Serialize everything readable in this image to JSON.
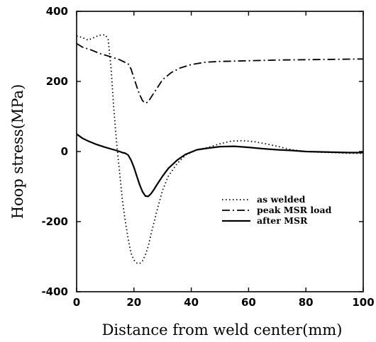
{
  "chart_data": {
    "type": "line",
    "title": "",
    "xlabel": "Distance from weld center(mm)",
    "ylabel": "Hoop stress(MPa)",
    "xlim": [
      0,
      100
    ],
    "ylim": [
      -400,
      400
    ],
    "x_ticks": [
      "0",
      "20",
      "40",
      "60",
      "80",
      "100"
    ],
    "y_ticks": [
      "400",
      "200",
      "0",
      "-200",
      "-400"
    ],
    "grid": false,
    "legend_position": "lower-right",
    "series": [
      {
        "name": "as welded",
        "style": "dotted",
        "color": "#000000",
        "points": [
          [
            0,
            330
          ],
          [
            2,
            325
          ],
          [
            4,
            318
          ],
          [
            6,
            325
          ],
          [
            8,
            332
          ],
          [
            10,
            333
          ],
          [
            11,
            320
          ],
          [
            12,
            240
          ],
          [
            13,
            120
          ],
          [
            14,
            20
          ],
          [
            15,
            -60
          ],
          [
            16,
            -140
          ],
          [
            17,
            -200
          ],
          [
            18,
            -250
          ],
          [
            19,
            -290
          ],
          [
            20,
            -310
          ],
          [
            21,
            -318
          ],
          [
            22,
            -320
          ],
          [
            23,
            -312
          ],
          [
            24,
            -295
          ],
          [
            25,
            -270
          ],
          [
            26,
            -235
          ],
          [
            28,
            -170
          ],
          [
            30,
            -110
          ],
          [
            32,
            -70
          ],
          [
            35,
            -35
          ],
          [
            38,
            -10
          ],
          [
            42,
            5
          ],
          [
            46,
            12
          ],
          [
            50,
            22
          ],
          [
            54,
            30
          ],
          [
            58,
            31
          ],
          [
            62,
            28
          ],
          [
            66,
            22
          ],
          [
            70,
            15
          ],
          [
            75,
            5
          ],
          [
            80,
            0
          ],
          [
            85,
            -2
          ],
          [
            90,
            -3
          ],
          [
            95,
            -5
          ],
          [
            100,
            -5
          ]
        ]
      },
      {
        "name": "peak MSR load",
        "style": "dashdot",
        "color": "#000000",
        "points": [
          [
            0,
            308
          ],
          [
            2,
            298
          ],
          [
            5,
            290
          ],
          [
            8,
            280
          ],
          [
            12,
            270
          ],
          [
            15,
            262
          ],
          [
            18,
            250
          ],
          [
            19,
            235
          ],
          [
            20,
            210
          ],
          [
            21,
            185
          ],
          [
            22,
            162
          ],
          [
            23,
            145
          ],
          [
            24,
            138
          ],
          [
            25,
            142
          ],
          [
            26,
            155
          ],
          [
            28,
            180
          ],
          [
            30,
            205
          ],
          [
            33,
            225
          ],
          [
            36,
            238
          ],
          [
            40,
            248
          ],
          [
            45,
            255
          ],
          [
            50,
            257
          ],
          [
            55,
            258
          ],
          [
            60,
            259
          ],
          [
            70,
            261
          ],
          [
            80,
            262
          ],
          [
            90,
            263
          ],
          [
            100,
            264
          ]
        ]
      },
      {
        "name": "after MSR",
        "style": "solid",
        "color": "#000000",
        "points": [
          [
            0,
            50
          ],
          [
            2,
            38
          ],
          [
            4,
            30
          ],
          [
            7,
            20
          ],
          [
            10,
            12
          ],
          [
            13,
            5
          ],
          [
            15,
            0
          ],
          [
            16,
            -3
          ],
          [
            17,
            -5
          ],
          [
            18,
            -10
          ],
          [
            19,
            -25
          ],
          [
            20,
            -45
          ],
          [
            21,
            -70
          ],
          [
            22,
            -95
          ],
          [
            23,
            -115
          ],
          [
            24,
            -127
          ],
          [
            25,
            -128
          ],
          [
            26,
            -120
          ],
          [
            27,
            -108
          ],
          [
            28,
            -95
          ],
          [
            30,
            -70
          ],
          [
            32,
            -48
          ],
          [
            35,
            -25
          ],
          [
            38,
            -8
          ],
          [
            42,
            5
          ],
          [
            46,
            10
          ],
          [
            50,
            14
          ],
          [
            55,
            15
          ],
          [
            60,
            12
          ],
          [
            65,
            8
          ],
          [
            70,
            5
          ],
          [
            75,
            3
          ],
          [
            80,
            0
          ],
          [
            85,
            -1
          ],
          [
            90,
            -2
          ],
          [
            95,
            -3
          ],
          [
            100,
            -3
          ]
        ]
      }
    ]
  }
}
